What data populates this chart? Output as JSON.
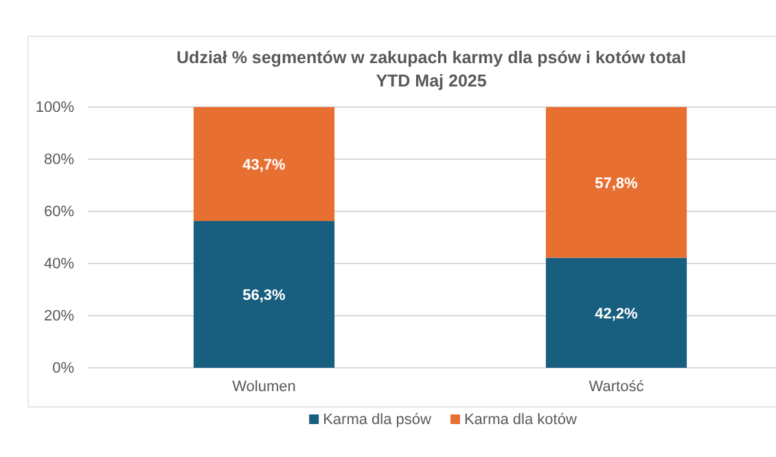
{
  "chart_data": {
    "type": "bar",
    "title": "Udział % segmentów w zakupach karmy dla psów i kotów total\nYTD Maj 2025",
    "categories": [
      "Wolumen",
      "Wartość"
    ],
    "stacked": true,
    "series": [
      {
        "name": "Karma dla psów",
        "color": "#175e7f",
        "values": [
          56.3,
          42.2
        ],
        "value_labels": [
          "56,3%",
          "42,2%"
        ]
      },
      {
        "name": "Karma dla kotów",
        "color": "#e86f32",
        "values": [
          43.7,
          57.8
        ],
        "value_labels": [
          "43,7%",
          "57,8%"
        ]
      }
    ],
    "ylim": [
      0,
      100
    ],
    "yticks": [
      {
        "value": 0,
        "label": "0%"
      },
      {
        "value": 20,
        "label": "20%"
      },
      {
        "value": 40,
        "label": "40%"
      },
      {
        "value": 60,
        "label": "60%"
      },
      {
        "value": 80,
        "label": "80%"
      },
      {
        "value": 100,
        "label": "100%"
      }
    ],
    "grid": "y",
    "legend": "bottom"
  }
}
